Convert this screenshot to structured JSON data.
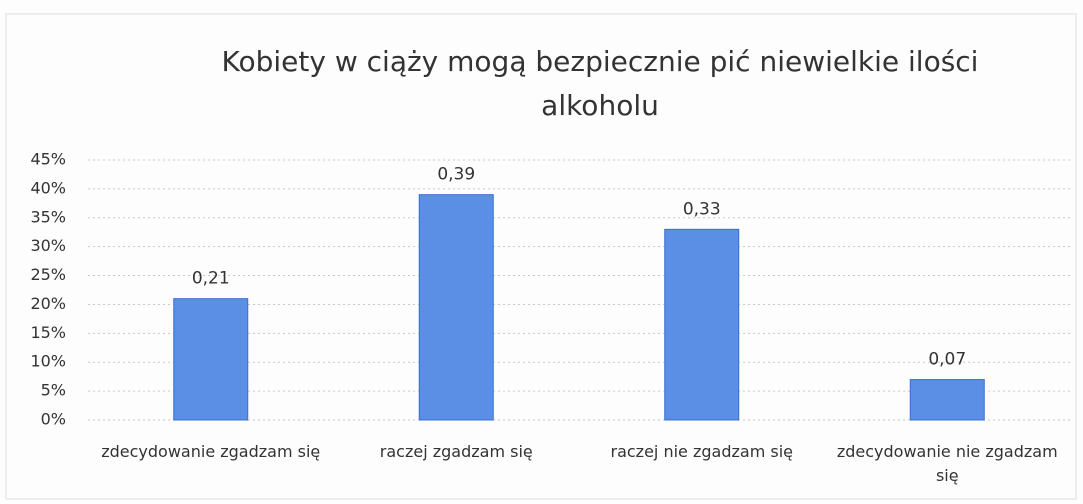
{
  "chart_data": {
    "type": "bar",
    "title": "Kobiety w ciąży mogą bezpiecznie pić niewielkie ilości alkoholu",
    "categories": [
      "zdecydowanie zgadzam się",
      "raczej zgadzam się",
      "raczej nie zgadzam się",
      "zdecydowanie nie zgadzam się"
    ],
    "values": [
      21,
      39,
      33,
      7
    ],
    "value_labels": [
      "0,21",
      "0,39",
      "0,33",
      "0,07"
    ],
    "color": "#5b8fe6",
    "ylim": [
      0,
      45
    ],
    "yticks": [
      {
        "value": 0,
        "label": "0%"
      },
      {
        "value": 5,
        "label": "5%"
      },
      {
        "value": 10,
        "label": "10%"
      },
      {
        "value": 15,
        "label": "15%"
      },
      {
        "value": 20,
        "label": "20%"
      },
      {
        "value": 25,
        "label": "25%"
      },
      {
        "value": 30,
        "label": "30%"
      },
      {
        "value": 35,
        "label": "35%"
      },
      {
        "value": 40,
        "label": "40%"
      },
      {
        "value": 45,
        "label": "45%"
      }
    ],
    "grid": true
  }
}
